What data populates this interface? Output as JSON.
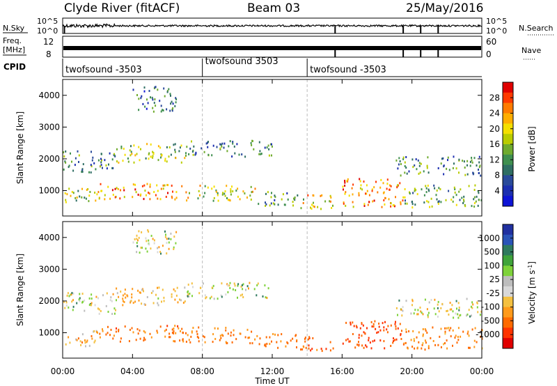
{
  "header": {
    "station": "Clyde River (fitACF)",
    "beam": "Beam 03",
    "date": "25/May/2016"
  },
  "chart_data": [
    {
      "type": "line",
      "panel": "noise",
      "left_label": "N.Sky",
      "right_label": "N.Search",
      "left_ticks": [
        "10^5",
        "10^0"
      ],
      "right_ticks": [
        "10^5",
        "10^0"
      ],
      "dips_hours": [
        0.1,
        15.6,
        19.5,
        20.5,
        21.5
      ]
    },
    {
      "type": "line",
      "panel": "frequency",
      "left_label_1": "Freq.",
      "left_label_2": "[MHz]",
      "right_label": "Nave",
      "left_ticks": [
        "12",
        "8"
      ],
      "right_ticks": [
        "60",
        "0"
      ],
      "dips_hours": [
        15.6,
        19.5,
        20.5,
        21.5
      ]
    },
    {
      "type": "table",
      "panel": "cpid",
      "label": "CPID",
      "segments": [
        {
          "name": "twofsound",
          "id": "-3503",
          "start_hour": 0,
          "end_hour": 8
        },
        {
          "name": "twofsound",
          "id": "3503",
          "start_hour": 8,
          "end_hour": 14
        },
        {
          "name": "twofsound",
          "id": "-3503",
          "start_hour": 14,
          "end_hour": 24
        }
      ]
    },
    {
      "type": "heatmap",
      "panel": "power",
      "ylabel": "Slant Range [km]",
      "yticks": [
        "4000",
        "3000",
        "2000",
        "1000"
      ],
      "ylim": [
        200,
        4500
      ],
      "xlim": [
        0,
        24
      ],
      "colorbar_label": "Power [dB]",
      "colorbar_ticks": [
        "28",
        "24",
        "20",
        "16",
        "12",
        "8",
        "4"
      ],
      "colorbar_colors": [
        "#e00000",
        "#ff3a00",
        "#ff7b00",
        "#ffae00",
        "#f4df00",
        "#b9cc00",
        "#6fab2e",
        "#3f8f4f",
        "#2f6e63",
        "#2a4a9a",
        "#1c2fb0",
        "#0e14d6"
      ],
      "bands": [
        {
          "t0": 0.0,
          "t1": 2.0,
          "r0": 600,
          "r1": 1100,
          "level": 14
        },
        {
          "t0": 2.0,
          "t1": 7.0,
          "r0": 750,
          "r1": 1250,
          "level": 22
        },
        {
          "t0": 7.0,
          "t1": 11.0,
          "r0": 700,
          "r1": 1200,
          "level": 16
        },
        {
          "t0": 11.0,
          "t1": 13.5,
          "r0": 550,
          "r1": 1000,
          "level": 10
        },
        {
          "t0": 13.5,
          "t1": 15.5,
          "r0": 450,
          "r1": 900,
          "level": 18
        },
        {
          "t0": 16.0,
          "t1": 19.5,
          "r0": 500,
          "r1": 1400,
          "level": 22
        },
        {
          "t0": 19.5,
          "t1": 24.0,
          "r0": 500,
          "r1": 1200,
          "level": 12
        },
        {
          "t0": 0.0,
          "t1": 3.0,
          "r0": 1600,
          "r1": 2300,
          "level": 8
        },
        {
          "t0": 3.0,
          "t1": 7.0,
          "r0": 1900,
          "r1": 2500,
          "level": 14
        },
        {
          "t0": 7.0,
          "t1": 12.0,
          "r0": 2100,
          "r1": 2600,
          "level": 9
        },
        {
          "t0": 19.0,
          "t1": 24.0,
          "r0": 1500,
          "r1": 2100,
          "level": 9
        },
        {
          "t0": 4.0,
          "t1": 6.5,
          "r0": 3500,
          "r1": 4300,
          "level": 7
        }
      ]
    },
    {
      "type": "heatmap",
      "panel": "velocity",
      "ylabel": "Slant Range [km]",
      "yticks": [
        "4000",
        "3000",
        "2000",
        "1000"
      ],
      "ylim": [
        200,
        4500
      ],
      "xlim": [
        0,
        24
      ],
      "xticks": [
        "00:00",
        "04:00",
        "08:00",
        "12:00",
        "16:00",
        "20:00",
        "00:00"
      ],
      "xlabel": "Time UT",
      "colorbar_label": "Velocity [m s",
      "colorbar_label_sup": "-1",
      "colorbar_label_tail": "]",
      "colorbar_ticks": [
        "1000",
        "500",
        "100",
        "25",
        "-25",
        "-100",
        "-500",
        "-1000"
      ],
      "colorbar_colors": [
        "#2030a0",
        "#2a54b8",
        "#2f7a5e",
        "#3fa33a",
        "#7ed23a",
        "#bdbdbd",
        "#d8d8d8",
        "#f4c040",
        "#ff9a1a",
        "#ff6a00",
        "#ff3300",
        "#e00000"
      ],
      "bands": [
        {
          "t0": 0.0,
          "t1": 2.0,
          "r0": 600,
          "r1": 1100,
          "velocity": -100
        },
        {
          "t0": 2.0,
          "t1": 7.0,
          "r0": 750,
          "r1": 1250,
          "velocity": -400
        },
        {
          "t0": 7.0,
          "t1": 11.0,
          "r0": 700,
          "r1": 1200,
          "velocity": -350
        },
        {
          "t0": 11.0,
          "t1": 13.5,
          "r0": 550,
          "r1": 1000,
          "velocity": -300
        },
        {
          "t0": 13.5,
          "t1": 15.5,
          "r0": 450,
          "r1": 900,
          "velocity": -450
        },
        {
          "t0": 16.0,
          "t1": 19.5,
          "r0": 500,
          "r1": 1400,
          "velocity": -500
        },
        {
          "t0": 19.5,
          "t1": 24.0,
          "r0": 500,
          "r1": 1200,
          "velocity": -200
        },
        {
          "t0": 0.0,
          "t1": 3.0,
          "r0": 1600,
          "r1": 2300,
          "velocity": 0
        },
        {
          "t0": 3.0,
          "t1": 7.0,
          "r0": 1900,
          "r1": 2500,
          "velocity": -90
        },
        {
          "t0": 7.0,
          "t1": 12.0,
          "r0": 2100,
          "r1": 2600,
          "velocity": 0
        },
        {
          "t0": 19.0,
          "t1": 24.0,
          "r0": 1500,
          "r1": 2100,
          "velocity": 0
        },
        {
          "t0": 4.0,
          "t1": 6.5,
          "r0": 3500,
          "r1": 4300,
          "velocity": 0
        }
      ]
    }
  ]
}
